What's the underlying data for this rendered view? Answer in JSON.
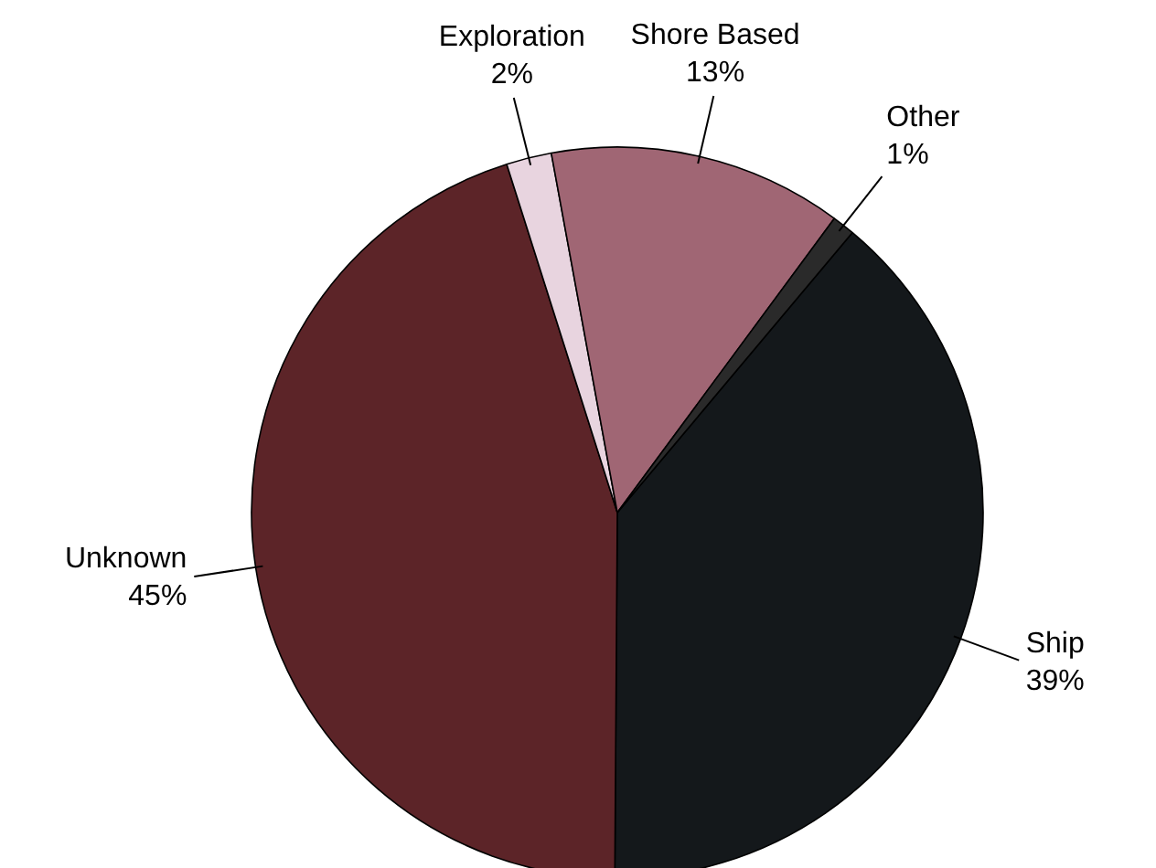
{
  "chart_data": {
    "type": "pie",
    "categories": [
      "Ship",
      "Unknown",
      "Exploration",
      "Shore Based",
      "Other"
    ],
    "values": [
      39,
      45,
      2,
      13,
      1
    ],
    "value_labels": [
      "39%",
      "45%",
      "2%",
      "13%",
      "1%"
    ],
    "colors": [
      "#14181b",
      "#5c2428",
      "#e8d4df",
      "#a06674",
      "#2a2a2a"
    ]
  }
}
